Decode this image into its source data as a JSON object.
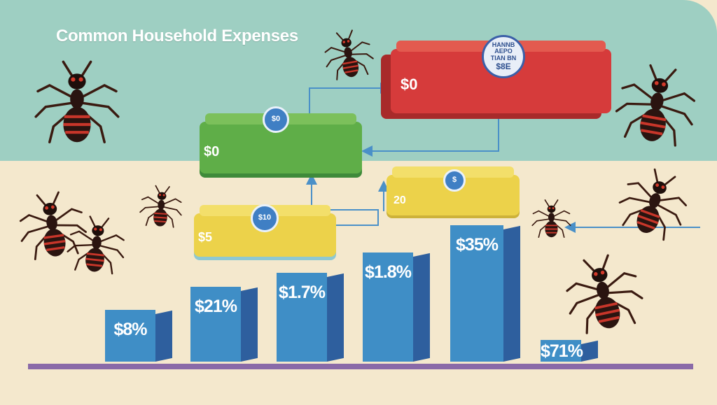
{
  "title": "Common Household Expenses",
  "colors": {
    "sky": "#9ecfc2",
    "ground": "#f4e8cd",
    "bar_front": "#3f8ec6",
    "bar_side": "#2e5f9e",
    "baseline": "#8a6aa8",
    "red_box": "#d63b3b",
    "green_box": "#5fae48",
    "yellow_box": "#ecd24a",
    "arrow": "#4a90c8"
  },
  "boxes": {
    "red": {
      "label": "$0",
      "badge_line1": "HANNB AEPO",
      "badge_line2": "TIAN BN",
      "badge_line3": "$8E"
    },
    "green": {
      "label": "$0",
      "coin": "$0"
    },
    "yellow_left": {
      "label": "$5",
      "coin": "$10"
    },
    "yellow_right": {
      "label": "20",
      "coin": "$"
    }
  },
  "bars": [
    {
      "label": "$8%",
      "relative_height": 0.38
    },
    {
      "label": "$21%",
      "relative_height": 0.55
    },
    {
      "label": "$1.7%",
      "relative_height": 0.65
    },
    {
      "label": "$1.8%",
      "relative_height": 0.8
    },
    {
      "label": "$35%",
      "relative_height": 1.0
    },
    {
      "label": "$71%",
      "relative_height": 0.16
    }
  ],
  "decorations": {
    "ants": "ant-icon"
  }
}
